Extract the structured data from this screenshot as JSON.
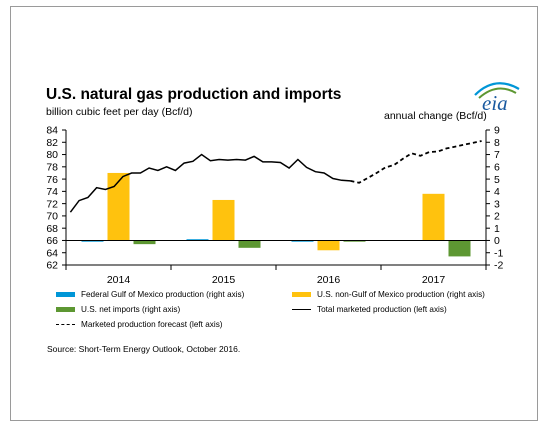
{
  "header": {
    "title": "U.S. natural gas production and imports",
    "subtitle": "billion cubic feet per day (Bcf/d)",
    "right_axis_title": "annual change (Bcf/d)",
    "logo_text": "eia"
  },
  "legend": {
    "federal_gom": "Federal Gulf of Mexico production (right axis)",
    "non_gom": "U.S. non-Gulf of Mexico production (right axis)",
    "net_imports": "U.S. net imports (right axis)",
    "total": "Total marketed production (left axis)",
    "forecast": "Marketed production forecast (left axis)"
  },
  "source": "Source: Short-Term Energy Outlook, October 2016.",
  "colors": {
    "federal_gom": "#0096d7",
    "non_gom": "#ffc20e",
    "net_imports": "#5d9732",
    "line": "#000000",
    "frame": "#9a9a9a"
  },
  "chart_data": {
    "type": "bar+line",
    "categories": [
      "2014",
      "2015",
      "2016",
      "2017"
    ],
    "left_axis": {
      "ylim": [
        62,
        84
      ],
      "ticks": [
        62,
        64,
        66,
        68,
        70,
        72,
        74,
        76,
        78,
        80,
        82,
        84
      ]
    },
    "right_axis": {
      "ylim": [
        -2,
        9
      ],
      "ticks": [
        -2,
        -1,
        0,
        1,
        2,
        3,
        4,
        5,
        6,
        7,
        8,
        9
      ]
    },
    "bar_series": [
      {
        "name": "Federal Gulf of Mexico production (right axis)",
        "values": [
          -0.1,
          0.1,
          -0.1,
          0.0
        ]
      },
      {
        "name": "U.S. non-Gulf of Mexico production (right axis)",
        "values": [
          5.5,
          3.3,
          -0.8,
          3.8
        ]
      },
      {
        "name": "U.S. net imports (right axis)",
        "values": [
          -0.3,
          -0.6,
          -0.1,
          -1.3
        ]
      }
    ],
    "line_series": [
      {
        "name": "Total marketed production (left axis)",
        "style": "solid",
        "x": [
          "2014-01",
          "2014-02",
          "2014-03",
          "2014-04",
          "2014-05",
          "2014-06",
          "2014-07",
          "2014-08",
          "2014-09",
          "2014-10",
          "2014-11",
          "2014-12",
          "2015-01",
          "2015-02",
          "2015-03",
          "2015-04",
          "2015-05",
          "2015-06",
          "2015-07",
          "2015-08",
          "2015-09",
          "2015-10",
          "2015-11",
          "2015-12",
          "2016-01",
          "2016-02",
          "2016-03",
          "2016-04",
          "2016-05",
          "2016-06",
          "2016-07",
          "2016-08",
          "2016-09"
        ],
        "values": [
          70.6,
          72.5,
          73.0,
          74.6,
          74.3,
          74.8,
          76.4,
          77.0,
          77.0,
          77.8,
          77.4,
          78.0,
          77.4,
          78.6,
          78.9,
          80.0,
          79.0,
          79.2,
          79.1,
          79.2,
          79.1,
          79.7,
          78.8,
          78.8,
          78.7,
          77.8,
          79.2,
          77.9,
          77.2,
          77.0,
          76.1,
          75.8,
          75.7
        ]
      },
      {
        "name": "Marketed production forecast (left axis)",
        "style": "dashed",
        "x": [
          "2016-09",
          "2016-10",
          "2016-11",
          "2016-12",
          "2017-01",
          "2017-02",
          "2017-03",
          "2017-04",
          "2017-05",
          "2017-06",
          "2017-07",
          "2017-08",
          "2017-09",
          "2017-10",
          "2017-11",
          "2017-12"
        ],
        "values": [
          75.7,
          75.4,
          76.2,
          77.0,
          77.9,
          78.3,
          79.3,
          80.2,
          79.8,
          80.4,
          80.5,
          81.0,
          81.3,
          81.6,
          81.9,
          82.2
        ]
      }
    ],
    "legend_position": "bottom",
    "grid": false
  }
}
